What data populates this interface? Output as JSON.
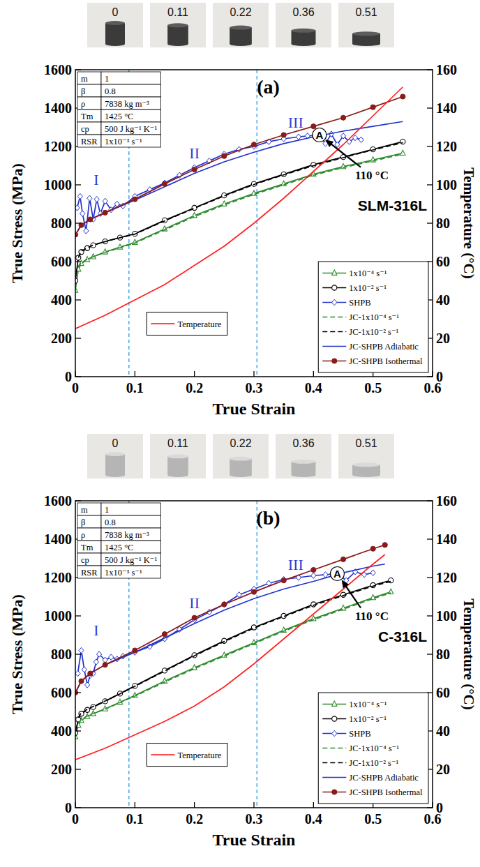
{
  "chart_data": [
    {
      "type": "line",
      "title": "(a)",
      "subtitle": "SLM-316L",
      "xlabel": "True Strain",
      "ylabel": "True Stress (MPa)",
      "y2label": "Temperature (°C)",
      "xlim": [
        0,
        0.6
      ],
      "xticks": [
        0,
        0.1,
        0.2,
        0.3,
        0.4,
        0.5,
        0.6
      ],
      "ylim": [
        0,
        1600
      ],
      "yticks": [
        0,
        200,
        400,
        600,
        800,
        1000,
        1200,
        1400,
        1600
      ],
      "y2lim": [
        0,
        160
      ],
      "y2ticks": [
        0,
        20,
        40,
        60,
        80,
        100,
        120,
        140,
        160
      ],
      "grid": false,
      "legend": "lower right",
      "specimens": [
        0,
        0.11,
        0.22,
        0.36,
        0.51
      ],
      "parameters": [
        {
          "symbol": "m",
          "value": "1"
        },
        {
          "symbol": "β",
          "value": "0.8"
        },
        {
          "symbol": "ρ",
          "value": "7838 kg m⁻³"
        },
        {
          "symbol": "Tm",
          "value": "1425 °C"
        },
        {
          "symbol": "cp",
          "value": "500 J kg⁻¹ K⁻¹"
        },
        {
          "symbol": "RSR",
          "value": "1x10⁻³ s⁻¹"
        }
      ],
      "region_bounds": [
        0.09,
        0.305
      ],
      "region_labels": [
        {
          "text": "I",
          "x": 0.035,
          "y": 1000
        },
        {
          "text": "II",
          "x": 0.2,
          "y": 1140
        },
        {
          "text": "III",
          "x": 0.37,
          "y": 1300
        }
      ],
      "annotations": [
        {
          "text": "A",
          "x": 0.41,
          "y": 1260,
          "marker": "circle"
        },
        {
          "text": "110 °C",
          "x": 0.47,
          "y": 1030,
          "arrow_to": {
            "x": 0.41,
            "y": 1260
          }
        }
      ],
      "series": [
        {
          "name": "1x10⁻⁴ s⁻¹",
          "color": "#2e8b2e",
          "marker": "triangle",
          "line_style": "solid",
          "x": [
            0,
            0.005,
            0.01,
            0.02,
            0.03,
            0.05,
            0.075,
            0.1,
            0.15,
            0.2,
            0.25,
            0.3,
            0.35,
            0.4,
            0.45,
            0.5,
            0.55
          ],
          "values": [
            450,
            560,
            590,
            610,
            625,
            650,
            675,
            700,
            770,
            840,
            900,
            955,
            1005,
            1055,
            1095,
            1130,
            1165
          ]
        },
        {
          "name": "1x10⁻² s⁻¹",
          "color": "#000000",
          "marker": "circle",
          "line_style": "solid",
          "x": [
            0,
            0.005,
            0.01,
            0.02,
            0.03,
            0.05,
            0.075,
            0.1,
            0.15,
            0.2,
            0.25,
            0.3,
            0.35,
            0.4,
            0.45,
            0.5,
            0.55
          ],
          "values": [
            500,
            620,
            650,
            670,
            685,
            705,
            725,
            745,
            815,
            880,
            945,
            1005,
            1055,
            1105,
            1145,
            1185,
            1225
          ]
        },
        {
          "name": "SHPB",
          "color": "#2233cc",
          "marker": "diamond",
          "line_style": "solid",
          "x": [
            0.003,
            0.008,
            0.012,
            0.018,
            0.024,
            0.03,
            0.036,
            0.042,
            0.05,
            0.06,
            0.07,
            0.08,
            0.1,
            0.125,
            0.15,
            0.175,
            0.2,
            0.225,
            0.25,
            0.275,
            0.3,
            0.325,
            0.35,
            0.375,
            0.39,
            0.41,
            0.42,
            0.43,
            0.44,
            0.45,
            0.46,
            0.47,
            0.48
          ],
          "values": [
            880,
            940,
            850,
            760,
            930,
            820,
            925,
            850,
            915,
            870,
            900,
            890,
            940,
            975,
            1010,
            1050,
            1090,
            1125,
            1160,
            1185,
            1200,
            1225,
            1240,
            1250,
            1255,
            1260,
            1215,
            1265,
            1210,
            1255,
            1225,
            1245,
            1235
          ]
        },
        {
          "name": "JC-1x10⁻⁴ s⁻¹",
          "color": "#2e8b2e",
          "marker": "none",
          "line_style": "dashed",
          "x": [
            0.005,
            0.01,
            0.02,
            0.03,
            0.05,
            0.075,
            0.1,
            0.15,
            0.2,
            0.25,
            0.3,
            0.35,
            0.4,
            0.45,
            0.5,
            0.55
          ],
          "values": [
            570,
            595,
            612,
            625,
            648,
            672,
            697,
            765,
            835,
            895,
            950,
            1000,
            1050,
            1090,
            1125,
            1160
          ]
        },
        {
          "name": "JC-1x10⁻² s⁻¹",
          "color": "#000000",
          "marker": "none",
          "line_style": "dashed",
          "x": [
            0.005,
            0.01,
            0.02,
            0.03,
            0.05,
            0.075,
            0.1,
            0.15,
            0.2,
            0.25,
            0.3,
            0.35,
            0.4,
            0.45,
            0.5,
            0.55
          ],
          "values": [
            620,
            655,
            672,
            686,
            704,
            724,
            743,
            812,
            878,
            942,
            1002,
            1052,
            1100,
            1142,
            1182,
            1220
          ]
        },
        {
          "name": "JC-SHPB Adiabatic",
          "color": "#2233cc",
          "marker": "none",
          "line_style": "solid",
          "x": [
            0,
            0.01,
            0.025,
            0.05,
            0.1,
            0.15,
            0.2,
            0.25,
            0.3,
            0.35,
            0.4,
            0.45,
            0.5,
            0.55
          ],
          "values": [
            740,
            790,
            820,
            855,
            920,
            990,
            1060,
            1120,
            1170,
            1215,
            1250,
            1280,
            1305,
            1330
          ]
        },
        {
          "name": "JC-SHPB Isothermal",
          "color": "#8b1a1a",
          "marker": "circle_filled",
          "line_style": "solid",
          "x": [
            0,
            0.01,
            0.025,
            0.05,
            0.1,
            0.15,
            0.2,
            0.25,
            0.3,
            0.35,
            0.4,
            0.45,
            0.5,
            0.55
          ],
          "values": [
            740,
            790,
            820,
            855,
            925,
            1005,
            1080,
            1150,
            1210,
            1260,
            1305,
            1350,
            1405,
            1460
          ]
        },
        {
          "name": "Temperature",
          "color": "#ff2020",
          "marker": "none",
          "line_style": "solid",
          "axis": "y2",
          "x": [
            0,
            0.05,
            0.1,
            0.15,
            0.2,
            0.25,
            0.3,
            0.35,
            0.4,
            0.45,
            0.5,
            0.55
          ],
          "values": [
            25,
            32,
            40,
            48,
            58,
            68,
            80,
            93,
            107,
            121,
            136,
            151
          ]
        }
      ]
    },
    {
      "type": "line",
      "title": "(b)",
      "subtitle": "C-316L",
      "xlabel": "True Strain",
      "ylabel": "True Stress (MPa)",
      "y2label": "Temperature (°C)",
      "xlim": [
        0,
        0.6
      ],
      "xticks": [
        0,
        0.1,
        0.2,
        0.3,
        0.4,
        0.5,
        0.6
      ],
      "ylim": [
        0,
        1600
      ],
      "yticks": [
        0,
        200,
        400,
        600,
        800,
        1000,
        1200,
        1400,
        1600
      ],
      "y2lim": [
        0,
        160
      ],
      "y2ticks": [
        0,
        20,
        40,
        60,
        80,
        100,
        120,
        140,
        160
      ],
      "grid": false,
      "legend": "lower right",
      "specimens": [
        0,
        0.11,
        0.22,
        0.36,
        0.51
      ],
      "parameters": [
        {
          "symbol": "m",
          "value": "1"
        },
        {
          "symbol": "β",
          "value": "0.8"
        },
        {
          "symbol": "ρ",
          "value": "7838 kg m⁻³"
        },
        {
          "symbol": "Tm",
          "value": "1425 °C"
        },
        {
          "symbol": "cp",
          "value": "500 J kg⁻¹ K⁻¹"
        },
        {
          "symbol": "RSR",
          "value": "1x10⁻³ s⁻¹"
        }
      ],
      "region_bounds": [
        0.09,
        0.305
      ],
      "region_labels": [
        {
          "text": "I",
          "x": 0.035,
          "y": 900
        },
        {
          "text": "II",
          "x": 0.2,
          "y": 1040
        },
        {
          "text": "III",
          "x": 0.37,
          "y": 1240
        }
      ],
      "annotations": [
        {
          "text": "A",
          "x": 0.44,
          "y": 1220,
          "marker": "circle"
        },
        {
          "text": "110 °C",
          "x": 0.47,
          "y": 980,
          "arrow_to": {
            "x": 0.44,
            "y": 1220
          }
        }
      ],
      "series": [
        {
          "name": "1x10⁻⁴ s⁻¹",
          "color": "#2e8b2e",
          "marker": "triangle",
          "line_style": "solid",
          "x": [
            0,
            0.005,
            0.01,
            0.02,
            0.03,
            0.05,
            0.075,
            0.1,
            0.15,
            0.2,
            0.25,
            0.3,
            0.35,
            0.4,
            0.45,
            0.5,
            0.53
          ],
          "values": [
            370,
            430,
            455,
            475,
            490,
            515,
            550,
            585,
            660,
            730,
            795,
            860,
            925,
            985,
            1040,
            1095,
            1125
          ]
        },
        {
          "name": "1x10⁻² s⁻¹",
          "color": "#000000",
          "marker": "circle",
          "line_style": "solid",
          "x": [
            0,
            0.005,
            0.01,
            0.02,
            0.03,
            0.05,
            0.075,
            0.1,
            0.15,
            0.2,
            0.25,
            0.3,
            0.35,
            0.4,
            0.45,
            0.5,
            0.53
          ],
          "values": [
            390,
            460,
            490,
            510,
            525,
            555,
            595,
            635,
            715,
            795,
            870,
            940,
            1000,
            1060,
            1110,
            1160,
            1185
          ]
        },
        {
          "name": "SHPB",
          "color": "#2233cc",
          "marker": "diamond",
          "line_style": "solid",
          "x": [
            0.004,
            0.01,
            0.015,
            0.02,
            0.025,
            0.03,
            0.035,
            0.04,
            0.05,
            0.06,
            0.07,
            0.08,
            0.1,
            0.125,
            0.15,
            0.175,
            0.2,
            0.225,
            0.25,
            0.275,
            0.3,
            0.325,
            0.35,
            0.375,
            0.4,
            0.42,
            0.44,
            0.455,
            0.47,
            0.485,
            0.5
          ],
          "values": [
            700,
            820,
            720,
            640,
            690,
            700,
            760,
            800,
            770,
            785,
            775,
            790,
            810,
            840,
            880,
            930,
            980,
            1020,
            1060,
            1110,
            1140,
            1170,
            1190,
            1200,
            1210,
            1215,
            1220,
            1185,
            1230,
            1215,
            1225
          ]
        },
        {
          "name": "JC-1x10⁻⁴ s⁻¹",
          "color": "#2e8b2e",
          "marker": "none",
          "line_style": "dashed",
          "x": [
            0.005,
            0.01,
            0.02,
            0.03,
            0.05,
            0.075,
            0.1,
            0.15,
            0.2,
            0.25,
            0.3,
            0.35,
            0.4,
            0.45,
            0.5,
            0.53
          ],
          "values": [
            440,
            460,
            478,
            492,
            514,
            548,
            582,
            655,
            725,
            790,
            855,
            920,
            980,
            1035,
            1090,
            1120
          ]
        },
        {
          "name": "JC-1x10⁻² s⁻¹",
          "color": "#000000",
          "marker": "none",
          "line_style": "dashed",
          "x": [
            0.005,
            0.01,
            0.02,
            0.03,
            0.05,
            0.075,
            0.1,
            0.15,
            0.2,
            0.25,
            0.3,
            0.35,
            0.4,
            0.45,
            0.5,
            0.53
          ],
          "values": [
            470,
            495,
            513,
            528,
            556,
            594,
            633,
            712,
            792,
            866,
            936,
            997,
            1055,
            1106,
            1155,
            1180
          ]
        },
        {
          "name": "JC-SHPB Adiabatic",
          "color": "#2233cc",
          "marker": "none",
          "line_style": "solid",
          "x": [
            0,
            0.01,
            0.025,
            0.05,
            0.1,
            0.15,
            0.2,
            0.25,
            0.3,
            0.35,
            0.4,
            0.45,
            0.5,
            0.52
          ],
          "values": [
            600,
            660,
            700,
            745,
            810,
            885,
            960,
            1030,
            1090,
            1140,
            1180,
            1225,
            1260,
            1270
          ]
        },
        {
          "name": "JC-SHPB Isothermal",
          "color": "#8b1a1a",
          "marker": "circle_filled",
          "line_style": "solid",
          "x": [
            0,
            0.01,
            0.025,
            0.05,
            0.1,
            0.15,
            0.2,
            0.25,
            0.3,
            0.35,
            0.4,
            0.45,
            0.5,
            0.52
          ],
          "values": [
            600,
            660,
            700,
            745,
            820,
            905,
            990,
            1060,
            1125,
            1185,
            1240,
            1295,
            1350,
            1370
          ]
        },
        {
          "name": "Temperature",
          "color": "#ff2020",
          "marker": "none",
          "line_style": "solid",
          "axis": "y2",
          "x": [
            0,
            0.05,
            0.1,
            0.15,
            0.2,
            0.25,
            0.3,
            0.35,
            0.4,
            0.45,
            0.5,
            0.52
          ],
          "values": [
            25,
            31,
            38,
            45,
            53,
            63,
            75,
            88,
            101,
            114,
            127,
            132
          ]
        }
      ]
    }
  ]
}
